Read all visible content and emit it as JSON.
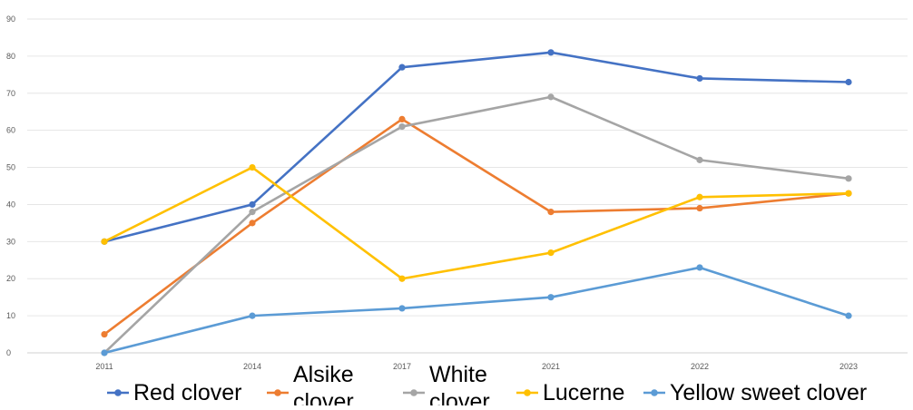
{
  "chart_data": {
    "type": "line",
    "title": "",
    "xlabel": "",
    "ylabel": "",
    "categories": [
      "2011",
      "2014",
      "2017",
      "2021",
      "2022",
      "2023"
    ],
    "ylim": [
      0,
      90
    ],
    "yticks": [
      "0",
      "10",
      "20",
      "30",
      "40",
      "50",
      "60",
      "70",
      "80",
      "90"
    ],
    "grid": "horizontal",
    "legend_position": "bottom",
    "series": [
      {
        "name": "Red clover",
        "color": "#4472c4",
        "values": [
          30,
          40,
          77,
          81,
          74,
          73
        ]
      },
      {
        "name": "Alsike clover",
        "color": "#ed7d31",
        "values": [
          5,
          35,
          63,
          38,
          39,
          43
        ]
      },
      {
        "name": "White clover",
        "color": "#a5a5a5",
        "values": [
          0,
          38,
          61,
          69,
          52,
          47
        ]
      },
      {
        "name": "Lucerne",
        "color": "#ffc000",
        "values": [
          30,
          50,
          20,
          27,
          42,
          43
        ]
      },
      {
        "name": "Yellow sweet clover",
        "color": "#5b9bd5",
        "values": [
          0,
          10,
          12,
          15,
          23,
          10
        ]
      }
    ]
  }
}
